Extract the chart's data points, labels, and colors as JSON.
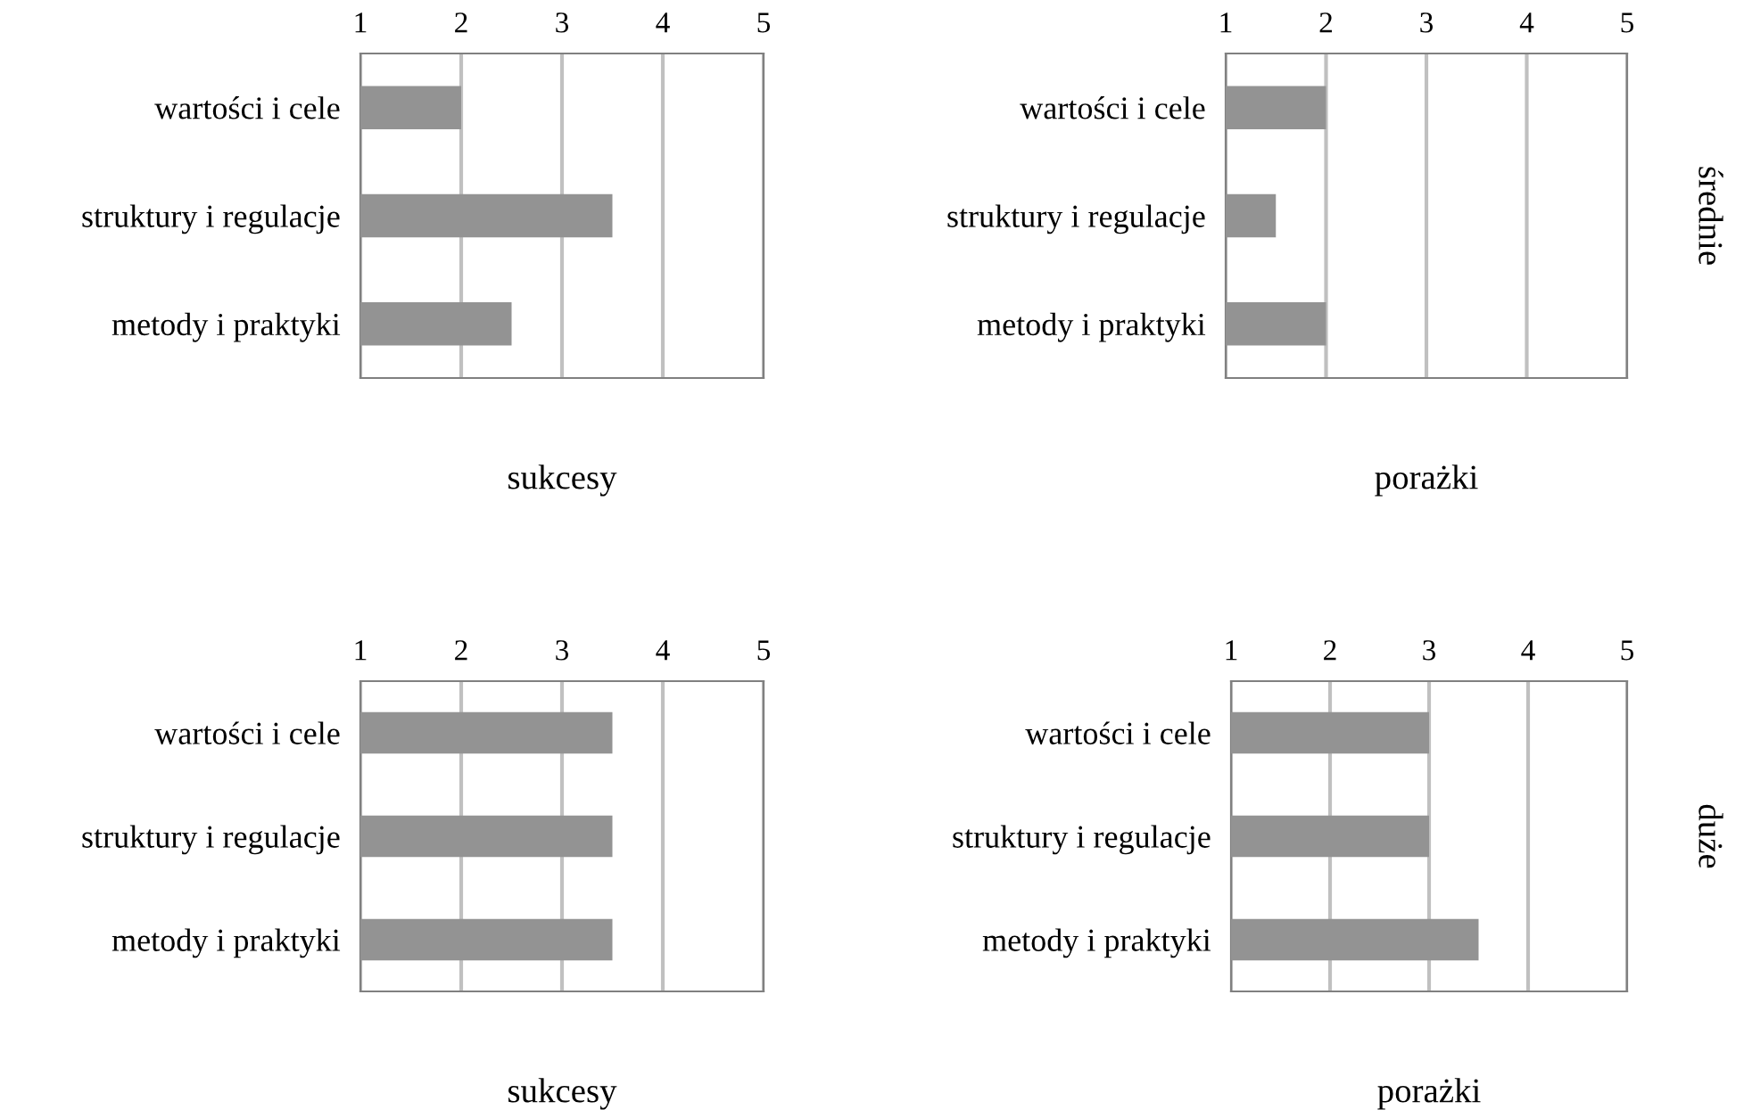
{
  "chart_data": [
    {
      "type": "bar",
      "orientation": "horizontal",
      "categories": [
        "wartości i cele",
        "struktury i regulacje",
        "metody i praktyki"
      ],
      "values": [
        2,
        3.5,
        2.5
      ],
      "color": "#939393",
      "xlim": [
        1,
        5
      ],
      "xticks": [
        1,
        2,
        3,
        4,
        5
      ],
      "grid": "x",
      "xlabel": "sukcesy"
    },
    {
      "type": "bar",
      "orientation": "horizontal",
      "categories": [
        "wartości i cele",
        "struktury i regulacje",
        "metody i praktyki"
      ],
      "values": [
        2,
        1.5,
        2
      ],
      "color": "#939393",
      "xlim": [
        1,
        5
      ],
      "xticks": [
        1,
        2,
        3,
        4,
        5
      ],
      "grid": "x",
      "xlabel": "porażki",
      "annotations": [
        "średnie"
      ]
    },
    {
      "type": "bar",
      "orientation": "horizontal",
      "categories": [
        "wartości i cele",
        "struktury i regulacje",
        "metody i praktyki"
      ],
      "values": [
        3.5,
        3.5,
        3.5
      ],
      "color": "#939393",
      "xlim": [
        1,
        5
      ],
      "xticks": [
        1,
        2,
        3,
        4,
        5
      ],
      "grid": "x",
      "xlabel": "sukcesy"
    },
    {
      "type": "bar",
      "orientation": "horizontal",
      "categories": [
        "wartości i cele",
        "struktury i regulacje",
        "metody i praktyki"
      ],
      "values": [
        3,
        3,
        3.5
      ],
      "color": "#939393",
      "xlim": [
        1,
        5
      ],
      "xticks": [
        1,
        2,
        3,
        4,
        5
      ],
      "grid": "x",
      "xlabel": "porażki",
      "annotations": [
        "duże"
      ]
    }
  ]
}
